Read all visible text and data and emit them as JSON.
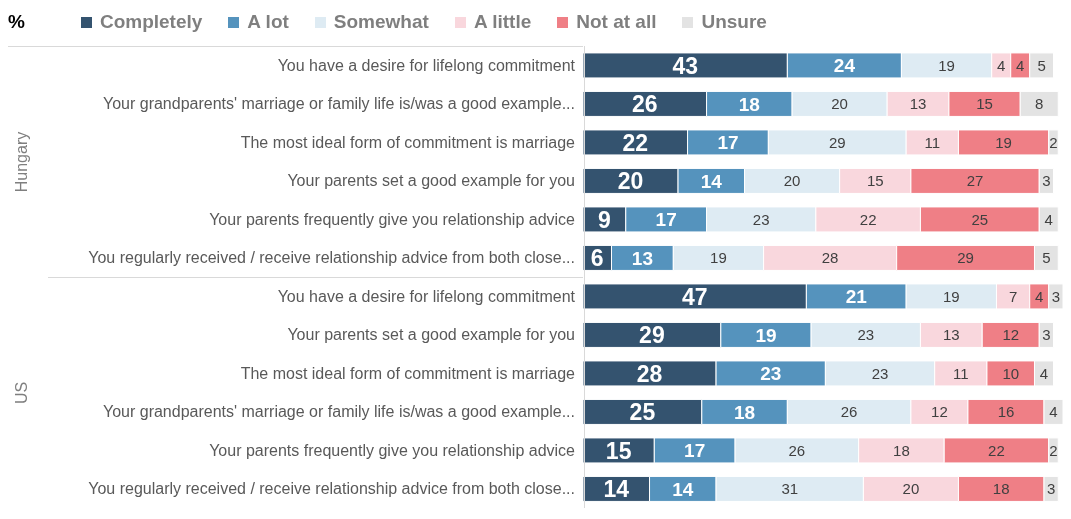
{
  "chart_data": {
    "type": "bar",
    "orientation": "horizontal",
    "stacked": true,
    "data_labels": true,
    "tick_labels": "y",
    "legend": "top",
    "legend_title": "%",
    "categories": [
      "You have a desire for lifelong commitment",
      "Your grandparents' marriage or family life is/was a good example...",
      "The most ideal form of commitment is marriage",
      "Your parents set a good example for you",
      "Your parents frequently give you relationship advice",
      "You regularly received / receive relationship advice from both close...",
      "You have a desire for lifelong commitment",
      "Your parents set a good example for you",
      "The most ideal form of commitment is marriage",
      "Your grandparents' marriage or family life is/was a good example...",
      "Your parents frequently give you relationship advice",
      "You regularly received / receive relationship advice from both close..."
    ],
    "annotations": [
      "Hungary",
      "US"
    ],
    "series": [
      {
        "name": "Completely",
        "color": "#34536f",
        "values": [
          43,
          26,
          22,
          20,
          9,
          6,
          47,
          29,
          28,
          25,
          15,
          14
        ]
      },
      {
        "name": "A lot",
        "color": "#5593bd",
        "values": [
          24,
          18,
          17,
          14,
          17,
          13,
          21,
          19,
          23,
          18,
          17,
          14
        ]
      },
      {
        "name": "Somewhat",
        "color": "#deebf3",
        "values": [
          19,
          20,
          29,
          20,
          23,
          19,
          19,
          23,
          23,
          26,
          26,
          31
        ]
      },
      {
        "name": "A little",
        "color": "#f9d7dd",
        "values": [
          4,
          13,
          11,
          15,
          22,
          28,
          7,
          13,
          11,
          12,
          18,
          20
        ]
      },
      {
        "name": "Not at all",
        "color": "#ef7f86",
        "values": [
          4,
          15,
          19,
          27,
          25,
          29,
          4,
          12,
          10,
          16,
          22,
          18
        ]
      },
      {
        "name": "Unsure",
        "color": "#e3e3e3",
        "values": [
          5,
          8,
          2,
          3,
          4,
          5,
          3,
          3,
          4,
          4,
          2,
          3
        ]
      }
    ]
  }
}
